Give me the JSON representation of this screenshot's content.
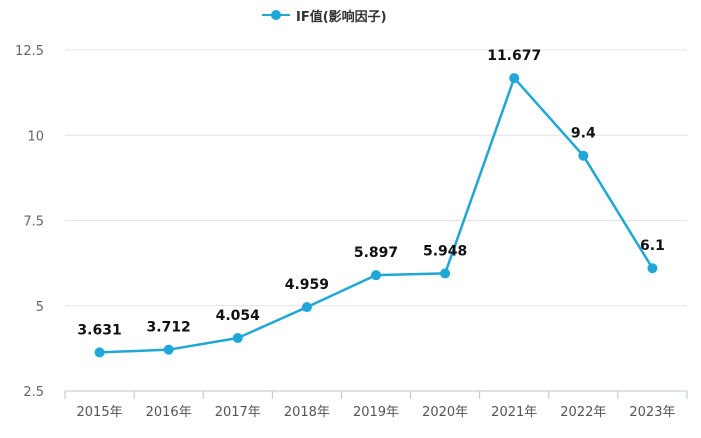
{
  "chart_data": {
    "type": "line",
    "title": "",
    "xlabel": "",
    "ylabel": "",
    "categories": [
      "2015年",
      "2016年",
      "2017年",
      "2018年",
      "2019年",
      "2020年",
      "2021年",
      "2022年",
      "2023年"
    ],
    "series": [
      {
        "name": "IF值(影响因子)",
        "values": [
          3.631,
          3.712,
          4.054,
          4.959,
          5.897,
          5.948,
          11.677,
          9.4,
          6.1
        ],
        "data_labels": [
          "3.631",
          "3.712",
          "4.054",
          "4.959",
          "5.897",
          "5.948",
          "11.677",
          "9.4",
          "6.1"
        ],
        "color": "#1ea7d7"
      }
    ],
    "yticks": [
      "2.5",
      "5",
      "7.5",
      "10",
      "12.5"
    ],
    "ytick_values": [
      2.5,
      5,
      7.5,
      10,
      12.5
    ],
    "ylim": [
      2.5,
      12.5
    ],
    "grid": "horizontal",
    "legend_position": "top-center"
  }
}
